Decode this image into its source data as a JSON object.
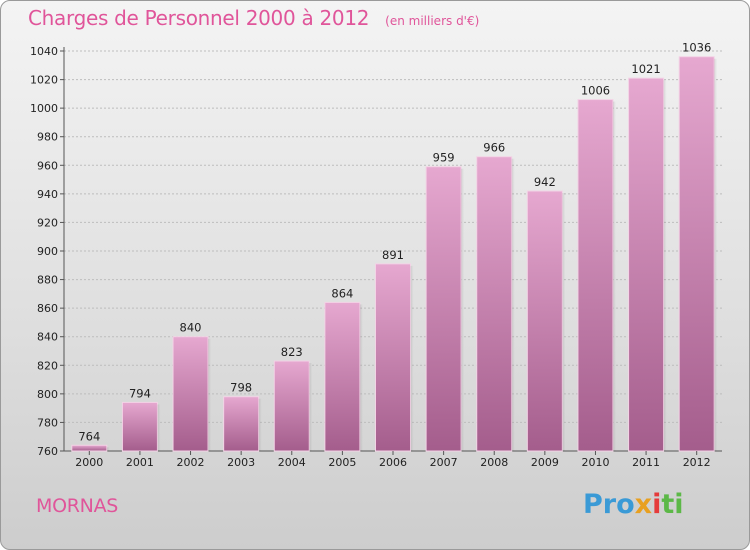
{
  "title": "Charges de Personnel 2000 à 2012",
  "subtitle": "(en milliers d'€)",
  "town": "MORNAS",
  "logo": {
    "p1": "Pro",
    "p2": "x",
    "p3": "i",
    "p4": "ti"
  },
  "colors": {
    "title": "#e0559a",
    "bar_top": "#e6a8d0",
    "bar_bottom": "#a45d8c"
  },
  "chart_data": {
    "type": "bar",
    "title": "Charges de Personnel 2000 à 2012",
    "subtitle": "(en milliers d'€)",
    "categories": [
      "2000",
      "2001",
      "2002",
      "2003",
      "2004",
      "2005",
      "2006",
      "2007",
      "2008",
      "2009",
      "2010",
      "2011",
      "2012"
    ],
    "values": [
      764,
      794,
      840,
      798,
      823,
      864,
      891,
      959,
      966,
      942,
      1006,
      1021,
      1036
    ],
    "ylim": [
      760,
      1040
    ],
    "yticks": [
      760,
      780,
      800,
      820,
      840,
      860,
      880,
      900,
      920,
      940,
      960,
      980,
      1000,
      1020,
      1040
    ],
    "grid": true,
    "legend": "none"
  }
}
